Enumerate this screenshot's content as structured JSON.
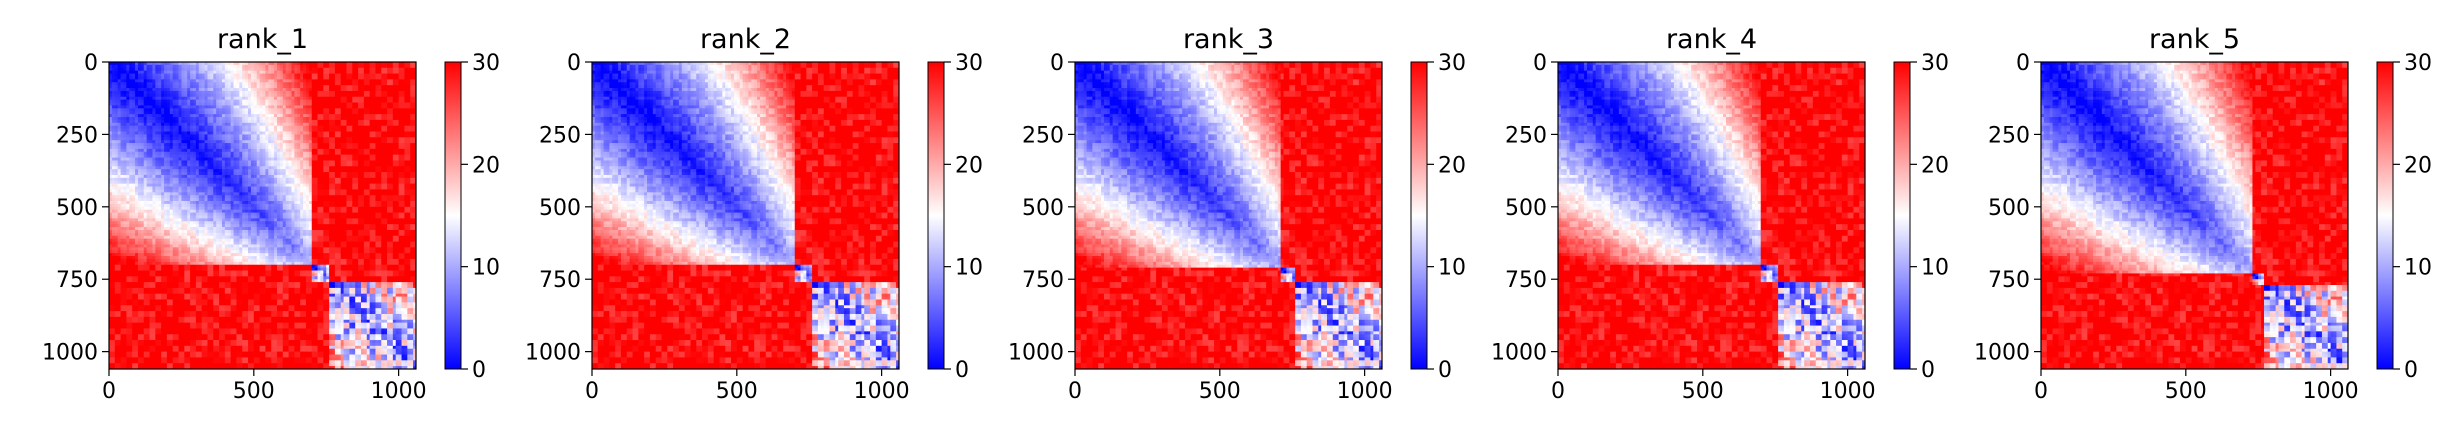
{
  "chart_data": [
    {
      "type": "heatmap",
      "title": "rank_1",
      "xlim": [
        0,
        1060
      ],
      "ylim": [
        1060,
        0
      ],
      "xticks": [
        0,
        500,
        1000
      ],
      "yticks": [
        0,
        250,
        500,
        750,
        1000
      ],
      "colorbar": {
        "min": 0,
        "max": 30,
        "ticks": [
          0,
          10,
          20,
          30
        ],
        "cmap": "bwr"
      },
      "blocks": [
        {
          "start": 0,
          "end": 700
        },
        {
          "start": 700,
          "end": 760
        },
        {
          "start": 760,
          "end": 1060
        }
      ],
      "grid": false
    },
    {
      "type": "heatmap",
      "title": "rank_2",
      "xlim": [
        0,
        1060
      ],
      "ylim": [
        1060,
        0
      ],
      "xticks": [
        0,
        500,
        1000
      ],
      "yticks": [
        0,
        250,
        500,
        750,
        1000
      ],
      "colorbar": {
        "min": 0,
        "max": 30,
        "ticks": [
          0,
          10,
          20,
          30
        ],
        "cmap": "bwr"
      },
      "blocks": [
        {
          "start": 0,
          "end": 705
        },
        {
          "start": 705,
          "end": 765
        },
        {
          "start": 765,
          "end": 1060
        }
      ],
      "grid": false
    },
    {
      "type": "heatmap",
      "title": "rank_3",
      "xlim": [
        0,
        1060
      ],
      "ylim": [
        1060,
        0
      ],
      "xticks": [
        0,
        500,
        1000
      ],
      "yticks": [
        0,
        250,
        500,
        750,
        1000
      ],
      "colorbar": {
        "min": 0,
        "max": 30,
        "ticks": [
          0,
          10,
          20,
          30
        ],
        "cmap": "bwr"
      },
      "blocks": [
        {
          "start": 0,
          "end": 715
        },
        {
          "start": 715,
          "end": 765
        },
        {
          "start": 765,
          "end": 1060
        }
      ],
      "grid": false
    },
    {
      "type": "heatmap",
      "title": "rank_4",
      "xlim": [
        0,
        1060
      ],
      "ylim": [
        1060,
        0
      ],
      "xticks": [
        0,
        500,
        1000
      ],
      "yticks": [
        0,
        250,
        500,
        750,
        1000
      ],
      "colorbar": {
        "min": 0,
        "max": 30,
        "ticks": [
          0,
          10,
          20,
          30
        ],
        "cmap": "bwr"
      },
      "blocks": [
        {
          "start": 0,
          "end": 705
        },
        {
          "start": 705,
          "end": 765
        },
        {
          "start": 765,
          "end": 1060
        }
      ],
      "grid": false
    },
    {
      "type": "heatmap",
      "title": "rank_5",
      "xlim": [
        0,
        1060
      ],
      "ylim": [
        1060,
        0
      ],
      "xticks": [
        0,
        500,
        1000
      ],
      "yticks": [
        0,
        250,
        500,
        750,
        1000
      ],
      "colorbar": {
        "min": 0,
        "max": 30,
        "ticks": [
          0,
          10,
          20,
          30
        ],
        "cmap": "bwr"
      },
      "blocks": [
        {
          "start": 0,
          "end": 730
        },
        {
          "start": 730,
          "end": 770
        },
        {
          "start": 770,
          "end": 1060
        }
      ],
      "grid": false
    }
  ],
  "colors": {
    "low": "#0000ff",
    "mid": "#ffffff",
    "high": "#ff0000"
  }
}
